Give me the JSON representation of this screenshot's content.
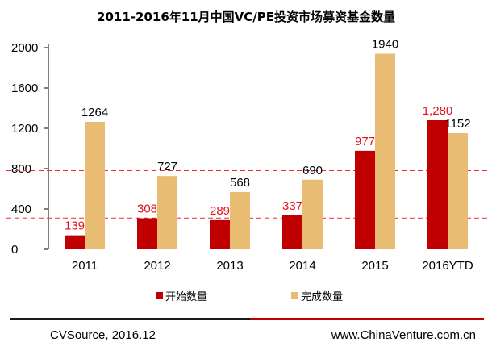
{
  "colors": {
    "start": "#c00000",
    "done": "#e8bd73",
    "start_label": "#e0131d",
    "ref_line": "#e8312e",
    "footer_bar_dark": "#1a1a1a",
    "footer_bar_red": "#c00000"
  },
  "chart_data": {
    "type": "bar",
    "title": "2011-2016年11月中国VC/PE投资市场募资基金数量",
    "categories": [
      "2011",
      "2012",
      "2013",
      "2014",
      "2015",
      "2016YTD"
    ],
    "series": [
      {
        "name": "开始数量",
        "values": [
          139,
          308,
          289,
          337,
          977,
          1280
        ],
        "labels": [
          "139",
          "308",
          "289",
          "337",
          "977",
          "1,280"
        ]
      },
      {
        "name": "完成数量",
        "values": [
          1264,
          727,
          568,
          690,
          1940,
          1152
        ],
        "labels": [
          "1264",
          "727",
          "568",
          "690",
          "1940",
          "1152"
        ]
      }
    ],
    "ylim": [
      0,
      2000
    ],
    "yticks": [
      "0",
      "400",
      "800",
      "1200",
      "1600",
      "2000"
    ],
    "ytick_values": [
      0,
      400,
      800,
      1200,
      1600,
      2000
    ],
    "reference_lines": [
      780,
      310
    ],
    "legend": "bottom",
    "grid": false
  },
  "footer": {
    "source": "CVSource, 2016.12",
    "site": "www.ChinaVenture.com.cn"
  }
}
